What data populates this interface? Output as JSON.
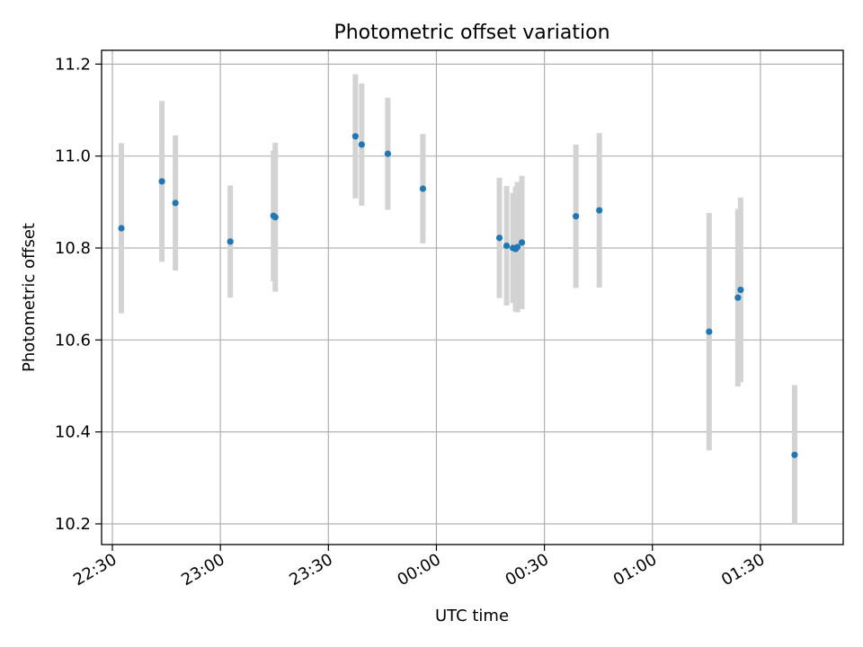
{
  "chart_data": {
    "type": "scatter",
    "title": "Photometric offset variation",
    "xlabel": "UTC time",
    "ylabel": "Photometric offset",
    "x_ticks": [
      "22:30",
      "23:00",
      "23:30",
      "00:00",
      "00:30",
      "01:00",
      "01:30"
    ],
    "y_ticks": [
      "10.2",
      "10.4",
      "10.6",
      "10.8",
      "11.0",
      "11.2"
    ],
    "xlim": [
      "22:27",
      "01:53"
    ],
    "ylim": [
      10.155,
      11.23
    ],
    "grid": true,
    "marker_color": "#1f77b4",
    "errorbar_color": "#d3d3d3",
    "points": [
      {
        "x": "22:32:30",
        "y": 10.843,
        "err": 0.185
      },
      {
        "x": "22:43:45",
        "y": 10.945,
        "err": 0.175
      },
      {
        "x": "22:47:30",
        "y": 10.898,
        "err": 0.147
      },
      {
        "x": "23:02:45",
        "y": 10.814,
        "err": 0.122
      },
      {
        "x": "23:14:45",
        "y": 10.87,
        "err": 0.142
      },
      {
        "x": "23:15:15",
        "y": 10.867,
        "err": 0.162
      },
      {
        "x": "23:37:30",
        "y": 11.043,
        "err": 0.135
      },
      {
        "x": "23:39:15",
        "y": 11.025,
        "err": 0.133
      },
      {
        "x": "23:46:30",
        "y": 11.005,
        "err": 0.122
      },
      {
        "x": "23:56:15",
        "y": 10.929,
        "err": 0.119
      },
      {
        "x": "00:17:30",
        "y": 10.822,
        "err": 0.131
      },
      {
        "x": "00:19:30",
        "y": 10.805,
        "err": 0.13
      },
      {
        "x": "00:21:15",
        "y": 10.8,
        "err": 0.12
      },
      {
        "x": "00:22:00",
        "y": 10.798,
        "err": 0.136
      },
      {
        "x": "00:22:30",
        "y": 10.802,
        "err": 0.142
      },
      {
        "x": "00:23:45",
        "y": 10.812,
        "err": 0.145
      },
      {
        "x": "00:38:45",
        "y": 10.869,
        "err": 0.156
      },
      {
        "x": "00:45:15",
        "y": 10.882,
        "err": 0.168
      },
      {
        "x": "01:15:45",
        "y": 10.618,
        "err": 0.258
      },
      {
        "x": "01:23:45",
        "y": 10.692,
        "err": 0.193
      },
      {
        "x": "01:24:30",
        "y": 10.709,
        "err": 0.201
      },
      {
        "x": "01:39:30",
        "y": 10.35,
        "err": 0.152
      }
    ]
  }
}
